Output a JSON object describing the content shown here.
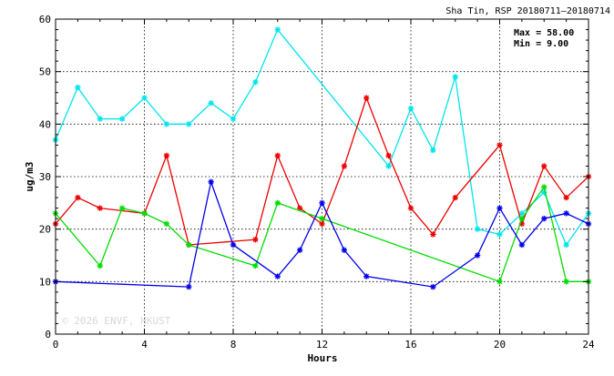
{
  "chart_data": {
    "type": "line",
    "title": "Sha Tin, RSP 20180711–20180714",
    "xlabel": "Hours",
    "ylabel": "ug/m3",
    "xlim": [
      0,
      24
    ],
    "ylim": [
      0,
      60
    ],
    "xticks": [
      0,
      4,
      8,
      12,
      16,
      20,
      24
    ],
    "yticks": [
      0,
      10,
      20,
      30,
      40,
      50,
      60
    ],
    "grid": true,
    "stats": {
      "max": "Max = 58.00",
      "min": "Min =  9.00"
    },
    "watermark": "© 2026  ENVF, HKUST",
    "series": [
      {
        "color": "#00e5ee",
        "points": [
          [
            0,
            37
          ],
          [
            1,
            47
          ],
          [
            2,
            41
          ],
          [
            3,
            41
          ],
          [
            4,
            45
          ],
          [
            5,
            40
          ],
          [
            6,
            40
          ],
          [
            7,
            44
          ],
          [
            8,
            41
          ],
          [
            9,
            48
          ],
          [
            10,
            58
          ],
          [
            15,
            32
          ],
          [
            16,
            43
          ],
          [
            17,
            35
          ],
          [
            18,
            49
          ],
          [
            19,
            20
          ],
          [
            20,
            19
          ],
          [
            21,
            23
          ],
          [
            22,
            27
          ],
          [
            23,
            17
          ],
          [
            24,
            23
          ]
        ]
      },
      {
        "color": "#ee0000",
        "points": [
          [
            0,
            21
          ],
          [
            1,
            26
          ],
          [
            2,
            24
          ],
          [
            4,
            23
          ],
          [
            5,
            34
          ],
          [
            6,
            17
          ],
          [
            9,
            18
          ],
          [
            10,
            34
          ],
          [
            11,
            24
          ],
          [
            12,
            21
          ],
          [
            13,
            32
          ],
          [
            14,
            45
          ],
          [
            15,
            34
          ],
          [
            16,
            24
          ],
          [
            17,
            19
          ],
          [
            18,
            26
          ],
          [
            20,
            36
          ],
          [
            21,
            21
          ],
          [
            22,
            32
          ],
          [
            23,
            26
          ],
          [
            24,
            30
          ]
        ]
      },
      {
        "color": "#00dd00",
        "points": [
          [
            0,
            23
          ],
          [
            2,
            13
          ],
          [
            3,
            24
          ],
          [
            4,
            23
          ],
          [
            5,
            21
          ],
          [
            6,
            17
          ],
          [
            9,
            13
          ],
          [
            10,
            25
          ],
          [
            12,
            22
          ],
          [
            20,
            10
          ],
          [
            21,
            22
          ],
          [
            22,
            28
          ],
          [
            23,
            10
          ],
          [
            24,
            10
          ]
        ]
      },
      {
        "color": "#0000ee",
        "points": [
          [
            0,
            10
          ],
          [
            6,
            9
          ],
          [
            7,
            29
          ],
          [
            8,
            17
          ],
          [
            10,
            11
          ],
          [
            11,
            16
          ],
          [
            12,
            25
          ],
          [
            13,
            16
          ],
          [
            14,
            11
          ],
          [
            17,
            9
          ],
          [
            19,
            15
          ],
          [
            20,
            24
          ],
          [
            21,
            17
          ],
          [
            22,
            22
          ],
          [
            23,
            23
          ],
          [
            24,
            21
          ]
        ]
      }
    ]
  }
}
